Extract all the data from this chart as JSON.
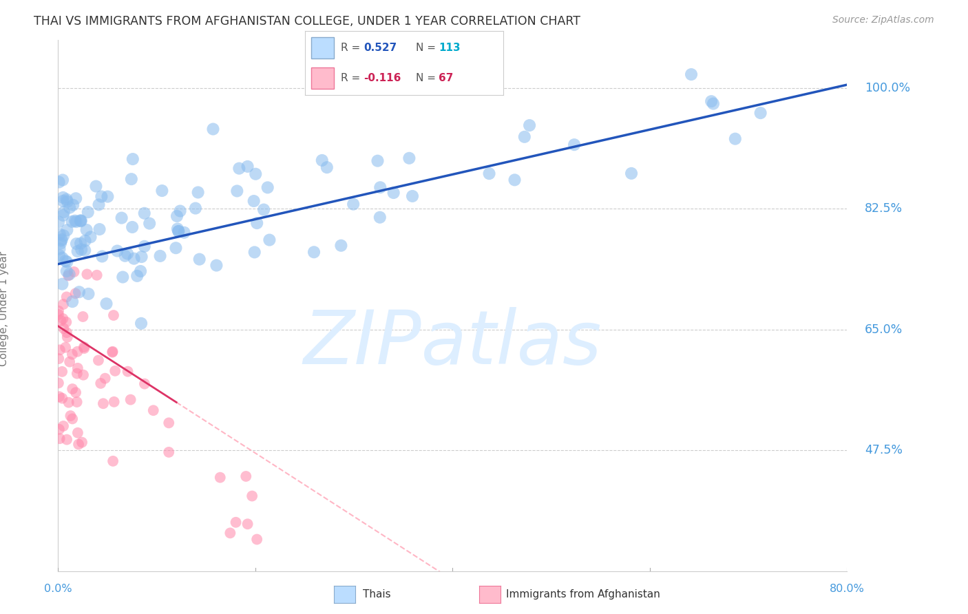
{
  "title": "THAI VS IMMIGRANTS FROM AFGHANISTAN COLLEGE, UNDER 1 YEAR CORRELATION CHART",
  "source": "Source: ZipAtlas.com",
  "ylabel": "College, Under 1 year",
  "xlim": [
    0.0,
    80.0
  ],
  "ylim": [
    30.0,
    107.0
  ],
  "yticks": [
    47.5,
    65.0,
    82.5,
    100.0
  ],
  "ytick_labels": [
    "47.5%",
    "65.0%",
    "82.5%",
    "100.0%"
  ],
  "series1_label": "Thais",
  "series1_color": "#88bbee",
  "series1_R": 0.527,
  "series1_N": 113,
  "series2_label": "Immigrants from Afghanistan",
  "series2_color": "#ff88aa",
  "series2_R": -0.116,
  "series2_N": 67,
  "background_color": "#ffffff",
  "grid_color": "#cccccc",
  "watermark": "ZIPatlas",
  "watermark_color": "#ddeeff",
  "blue_line_color": "#2255bb",
  "pink_solid_color": "#dd3366",
  "pink_dash_color": "#ffaabb",
  "seed": 42
}
